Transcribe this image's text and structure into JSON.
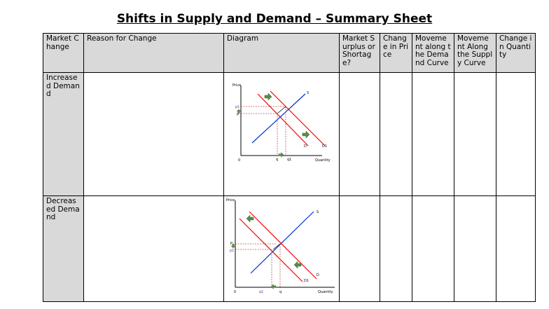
{
  "title": "Shifts in Supply and Demand – Summary Sheet",
  "headers": {
    "market_change": "Market Change",
    "reason": "Reason for Change",
    "diagram": "Diagram",
    "surplus": "Market Surplus or Shortage?",
    "price_change": "Change in Price",
    "demand_curve": "Movement along the Demand Curve",
    "supply_curve": "Movement Along the Supply Curve",
    "quantity_change": "Change in Quantity"
  },
  "rows": [
    {
      "market_change": "Increased Demand",
      "diagram": {
        "price_label": "Price",
        "quantity_label": "Quantity",
        "origin": "0",
        "supply": "S",
        "demand": "D",
        "demand_new": "D1",
        "p_new": "p1",
        "p": "p",
        "q": "q",
        "q_new": "q1"
      }
    },
    {
      "market_change": "Decreased Demand",
      "diagram": {
        "price_label": "Price",
        "quantity_label": "Quantity",
        "origin": "0",
        "supply": "S",
        "demand": "D",
        "demand_new": "D1",
        "p": "P",
        "p_new": "p1",
        "q_new": "q1",
        "q": "q"
      }
    }
  ],
  "colors": {
    "header_bg": "#d9d9d9",
    "demand_line": "#ff0000",
    "supply_line": "#0033cc",
    "arrow": "#5a8a4a",
    "dash": "#c0504d"
  }
}
